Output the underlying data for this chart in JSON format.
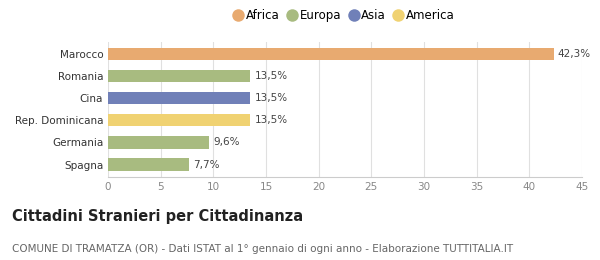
{
  "categories": [
    "Spagna",
    "Germania",
    "Rep. Dominicana",
    "Cina",
    "Romania",
    "Marocco"
  ],
  "values": [
    7.7,
    9.6,
    13.5,
    13.5,
    13.5,
    42.3
  ],
  "labels": [
    "7,7%",
    "9,6%",
    "13,5%",
    "13,5%",
    "13,5%",
    "42,3%"
  ],
  "colors": [
    "#a8bb80",
    "#a8bb80",
    "#f0d272",
    "#7080b8",
    "#a8bb80",
    "#e8aa70"
  ],
  "legend_items": [
    {
      "label": "Africa",
      "color": "#e8aa70"
    },
    {
      "label": "Europa",
      "color": "#a8bb80"
    },
    {
      "label": "Asia",
      "color": "#7080b8"
    },
    {
      "label": "America",
      "color": "#f0d272"
    }
  ],
  "xlim": [
    0,
    45
  ],
  "xticks": [
    0,
    5,
    10,
    15,
    20,
    25,
    30,
    35,
    40,
    45
  ],
  "title": "Cittadini Stranieri per Cittadinanza",
  "subtitle": "COMUNE DI TRAMATZA (OR) - Dati ISTAT al 1° gennaio di ogni anno - Elaborazione TUTTITALIA.IT",
  "title_fontsize": 10.5,
  "subtitle_fontsize": 7.5,
  "background_color": "#ffffff",
  "bar_height": 0.55
}
